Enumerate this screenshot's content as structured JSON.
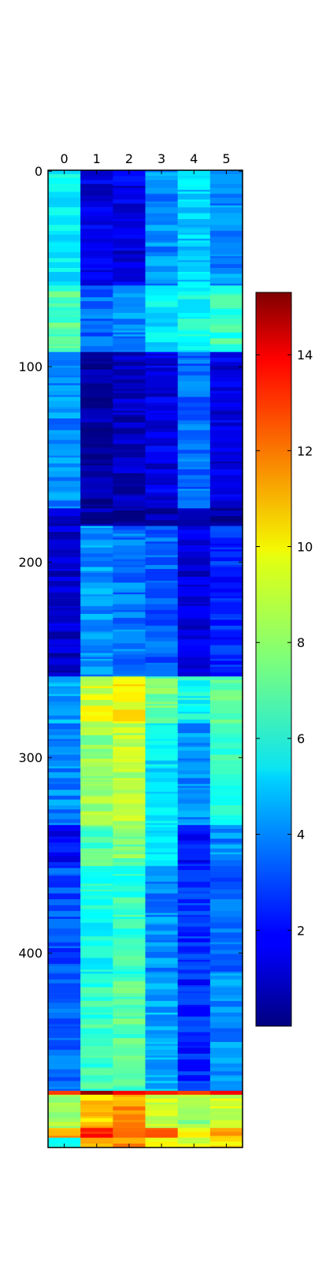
{
  "chart_data": {
    "type": "heatmap",
    "colormap": "jet",
    "x_ticks": [
      "0",
      "1",
      "2",
      "3",
      "4",
      "5"
    ],
    "x_tick_position": "top",
    "y_ticks": [
      "0",
      "100",
      "200",
      "300",
      "400"
    ],
    "rows": 500,
    "columns": 6,
    "color_range": [
      0,
      15.3
    ],
    "colorbar": {
      "ticks": [
        "2",
        "4",
        "6",
        "8",
        "10",
        "12",
        "14"
      ],
      "placement": "right"
    },
    "row_bands": [
      {
        "from": 0,
        "to": 58,
        "values": [
          5.5,
          1.5,
          1.5,
          4.0,
          5.0,
          4.0
        ]
      },
      {
        "from": 59,
        "to": 92,
        "values": [
          7.0,
          3.5,
          4.0,
          5.5,
          6.0,
          6.5
        ]
      },
      {
        "from": 93,
        "to": 172,
        "values": [
          4.0,
          0.5,
          1.0,
          1.5,
          3.5,
          1.5
        ]
      },
      {
        "from": 173,
        "to": 181,
        "values": [
          1.0,
          0.5,
          0.5,
          0.5,
          0.8,
          0.6
        ]
      },
      {
        "from": 182,
        "to": 258,
        "values": [
          1.2,
          4.2,
          3.7,
          3.4,
          1.4,
          2.5
        ]
      },
      {
        "from": 259,
        "to": 282,
        "values": [
          4.5,
          9.0,
          9.5,
          7.5,
          6.0,
          7.0
        ]
      },
      {
        "from": 283,
        "to": 334,
        "values": [
          4.0,
          8.0,
          8.5,
          5.5,
          4.0,
          6.5
        ]
      },
      {
        "from": 335,
        "to": 355,
        "values": [
          2.0,
          7.0,
          7.5,
          5.0,
          2.0,
          4.0
        ]
      },
      {
        "from": 356,
        "to": 410,
        "values": [
          3.0,
          6.0,
          6.5,
          4.0,
          2.5,
          3.5
        ]
      },
      {
        "from": 411,
        "to": 470,
        "values": [
          3.5,
          6.5,
          7.0,
          4.5,
          2.5,
          4.0
        ]
      },
      {
        "from": 471,
        "to": 472,
        "values": [
          12.5,
          15.0,
          13.5,
          13.0,
          12.5,
          13.5
        ]
      },
      {
        "from": 473,
        "to": 489,
        "values": [
          8.5,
          10.5,
          11.0,
          8.5,
          8.0,
          9.0
        ]
      },
      {
        "from": 490,
        "to": 494,
        "values": [
          11.0,
          13.0,
          12.5,
          11.5,
          10.0,
          10.5
        ]
      },
      {
        "from": 495,
        "to": 499,
        "values": [
          6.0,
          10.5,
          11.0,
          10.0,
          9.0,
          10.0
        ]
      }
    ]
  }
}
